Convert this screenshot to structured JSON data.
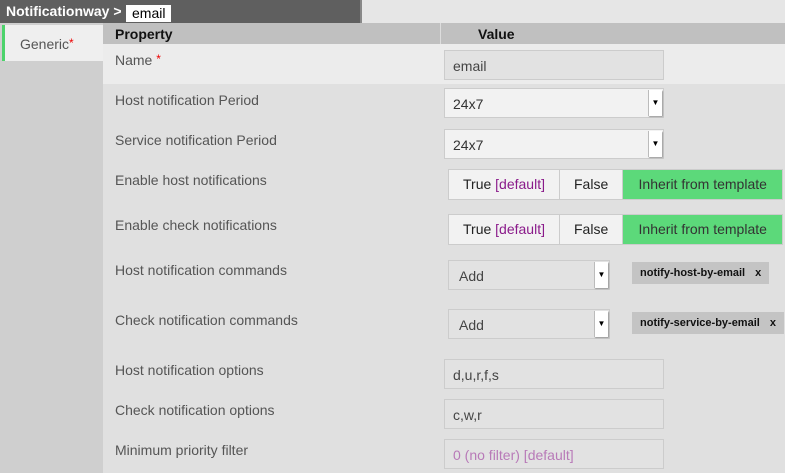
{
  "breadcrumb": {
    "label": "Notificationway >",
    "value": "email"
  },
  "sidebar": {
    "tab": "Generic",
    "required": "*"
  },
  "header": {
    "property": "Property",
    "value": "Value"
  },
  "fields": {
    "name": {
      "label": "Name",
      "value": "email"
    },
    "host_period": {
      "label": "Host notification Period",
      "value": "24x7"
    },
    "service_period": {
      "label": "Service notification Period",
      "value": "24x7"
    },
    "host_enabled": {
      "label": "Enable host notifications",
      "true": "True",
      "default": "[default]",
      "false": "False",
      "inherit": "Inherit from template",
      "selected": "inherit"
    },
    "check_enabled": {
      "label": "Enable check notifications",
      "true": "True",
      "default": "[default]",
      "false": "False",
      "inherit": "Inherit from template",
      "selected": "inherit"
    },
    "host_commands": {
      "label": "Host notification commands",
      "add": "Add",
      "tags": [
        "notify-host-by-email"
      ],
      "remove": "x"
    },
    "check_commands": {
      "label": "Check notification commands",
      "add": "Add",
      "tags": [
        "notify-service-by-email"
      ],
      "remove": "x"
    },
    "host_options": {
      "label": "Host notification options",
      "value": "d,u,r,f,s"
    },
    "check_options": {
      "label": "Check notification options",
      "value": "c,w,r"
    },
    "min_priority": {
      "label": "Minimum priority filter",
      "placeholder": "0 (no filter) [default]"
    }
  },
  "colors": {
    "accent": "#5cd97a",
    "default_text": "#8a1a8a",
    "required": "#ee0000"
  }
}
